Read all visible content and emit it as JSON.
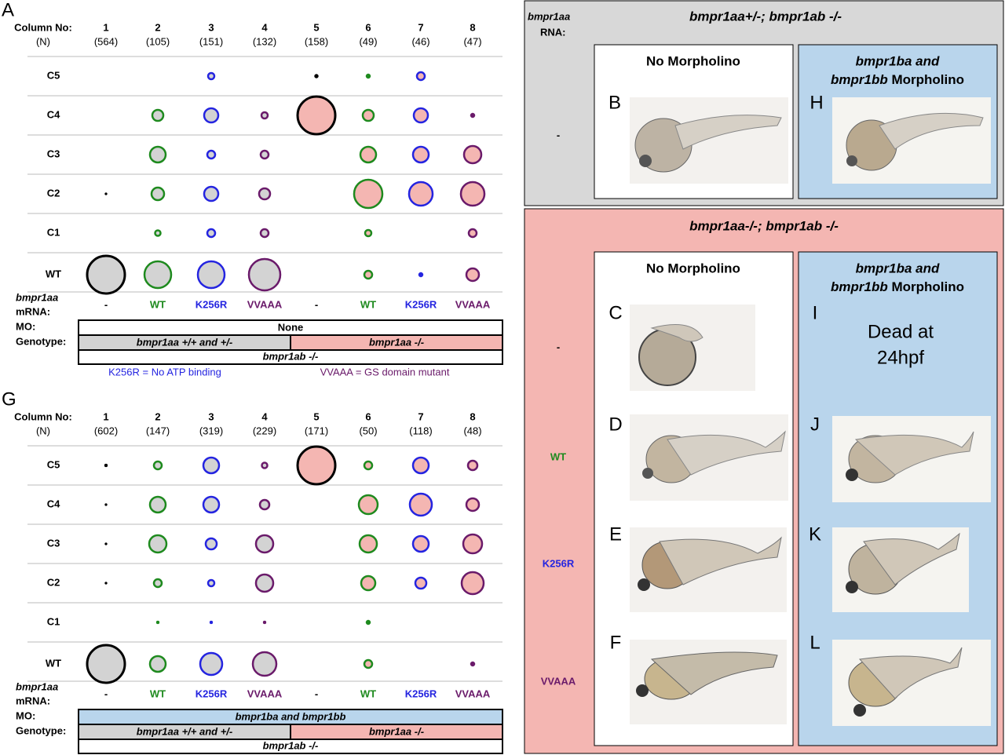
{
  "panel_A": {
    "letter": "A",
    "column_label": "Column No:",
    "n_label": "(N)",
    "columns": [
      "1",
      "2",
      "3",
      "4",
      "5",
      "6",
      "7",
      "8"
    ],
    "n": [
      "(564)",
      "(105)",
      "(151)",
      "(132)",
      "(158)",
      "(49)",
      "(46)",
      "(47)"
    ],
    "rows": [
      "C5",
      "C4",
      "C3",
      "C2",
      "C1",
      "WT"
    ],
    "sizes": [
      [
        null,
        null,
        4,
        null,
        2.5,
        3,
        5,
        null
      ],
      [
        null,
        7,
        9,
        4,
        24,
        7,
        9,
        3
      ],
      [
        null,
        10,
        5,
        5,
        null,
        10,
        10,
        11
      ],
      [
        1.5,
        8,
        9,
        7,
        null,
        18,
        15,
        15
      ],
      [
        null,
        3.5,
        5,
        5,
        null,
        4,
        null,
        5
      ],
      [
        24,
        17,
        17,
        20,
        null,
        5,
        3,
        8
      ]
    ],
    "mrna_label_1": "bmpr1aa",
    "mrna_label_2": "mRNA:",
    "mrna": [
      "-",
      "WT",
      "K256R",
      "VVAAA",
      "-",
      "WT",
      "K256R",
      "VVAAA"
    ],
    "mo_label": "MO:",
    "mo": "None",
    "mo_color": "#ffffff",
    "genotype_label": "Genotype:",
    "genotype_left": "bmpr1aa +/+ and +/-",
    "genotype_right": "bmpr1aa -/-",
    "background": "bmpr1ab -/-",
    "legend_left": "K256R = No ATP binding",
    "legend_right": "VVAAA = GS domain mutant"
  },
  "panel_G": {
    "letter": "G",
    "column_label": "Column No:",
    "n_label": "(N)",
    "columns": [
      "1",
      "2",
      "3",
      "4",
      "5",
      "6",
      "7",
      "8"
    ],
    "n": [
      "(602)",
      "(147)",
      "(319)",
      "(229)",
      "(171)",
      "(50)",
      "(118)",
      "(48)"
    ],
    "rows": [
      "C5",
      "C4",
      "C3",
      "C2",
      "C1",
      "WT"
    ],
    "sizes": [
      [
        2,
        5,
        10,
        3.5,
        24,
        5,
        10,
        6
      ],
      [
        1.5,
        10,
        10,
        6,
        null,
        12,
        14,
        8
      ],
      [
        1.5,
        11,
        7,
        11,
        null,
        11,
        10,
        12
      ],
      [
        1.5,
        5,
        4,
        11,
        null,
        9,
        7,
        14
      ],
      [
        null,
        2,
        2,
        2,
        null,
        3,
        null,
        null
      ],
      [
        24,
        10,
        14,
        15,
        null,
        5,
        null,
        3
      ]
    ],
    "mrna_label_1": "bmpr1aa",
    "mrna_label_2": "mRNA:",
    "mrna": [
      "-",
      "WT",
      "K256R",
      "VVAAA",
      "-",
      "WT",
      "K256R",
      "VVAAA"
    ],
    "mo_label": "MO:",
    "mo": "bmpr1ba and bmpr1bb",
    "mo_color": "#b9d5ec",
    "genotype_label": "Genotype:",
    "genotype_left": "bmpr1aa +/+ and +/-",
    "genotype_right": "bmpr1aa -/-",
    "background": "bmpr1ab -/-"
  },
  "colors": [
    "#000000",
    "#1e8a1e",
    "#2424e0",
    "#6a1a6a",
    "#000000",
    "#1e8a1e",
    "#2424e0",
    "#6a1a6a"
  ],
  "fills": [
    "#d3d3d3",
    "#d3d3d3",
    "#d3d3d3",
    "#d3d3d3",
    "#f4b6b2",
    "#f4b6b2",
    "#f4b6b2",
    "#f4b6b2"
  ],
  "top_box": {
    "rna_label_1": "bmpr1aa",
    "rna_label_2": "RNA:",
    "genotype": "bmpr1aa+/-; bmpr1ab -/-",
    "row": "-",
    "no_mo": "No Morpholino",
    "mo_line1": "bmpr1ba and",
    "mo_line2_italic": "bmpr1bb",
    "mo_line2_rest": "Morpholino",
    "letters": [
      "B",
      "H"
    ]
  },
  "bottom_box": {
    "genotype": "bmpr1aa-/-; bmpr1ab -/-",
    "rows": [
      "-",
      "WT",
      "K256R",
      "VVAAA"
    ],
    "no_mo": "No Morpholino",
    "mo_line1": "bmpr1ba and",
    "mo_line2_italic": "bmpr1bb",
    "mo_line2_rest": "Morpholino",
    "letters_left": [
      "C",
      "D",
      "E",
      "F"
    ],
    "letters_right": [
      "I",
      "J",
      "K",
      "L"
    ],
    "dead_1": "Dead at",
    "dead_2": "24hpf"
  }
}
